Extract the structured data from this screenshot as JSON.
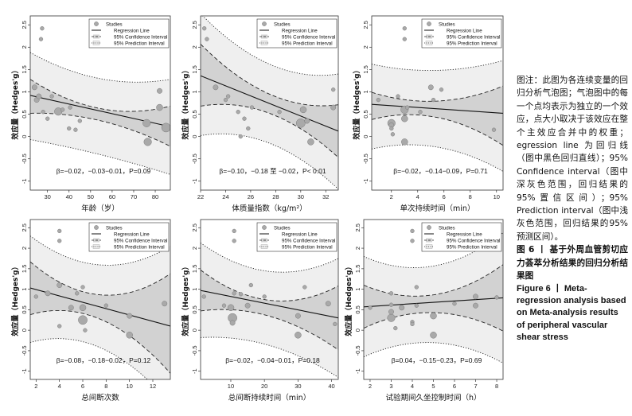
{
  "legend": {
    "studies": "Studies",
    "regression": "Regression Line",
    "ci": "95% Confidence Interval",
    "pi": "95% Prediction Interval"
  },
  "caption": {
    "note": "图注：此图为各连续变量的回归分析气泡图；气泡图中的每一个点均表示为独立的一个效应，点大小取决于该效应在整个主效应合并中的权重；egression line 为回归线（图中黑色回归直线）；95% Confidence interval（图中深灰色范围，回归结果的95%置信区间）；95% Prediction interval（图中浅灰色范围，回归结果的95% 预测区间）。",
    "title_zh": "图 6 丨 基于外周血管剪切应力荟萃分析结果的回归分析结果图",
    "title_en": "Figure 6 丨 Meta-regression analysis based on Meta-analysis results of peripheral vascular shear stress"
  },
  "chart_data": [
    {
      "type": "scatter",
      "xlabel": "年龄（岁）",
      "ylabel": "效应量（Hedges'g）",
      "xlim": [
        22,
        87
      ],
      "ylim": [
        -1.2,
        2.7
      ],
      "xticks": [
        30,
        40,
        50,
        60,
        70,
        80
      ],
      "yticks": [
        -1,
        -0.5,
        0,
        0.5,
        1,
        1.5,
        2,
        2.5
      ],
      "grid": false,
      "legend": "top-right",
      "stats": "β=−0.02，−0.03−0.01，P=0.09",
      "regression": {
        "x0": 22,
        "y0": 0.92,
        "x1": 87,
        "y1": 0.22
      },
      "ci": {
        "x": [
          22,
          54,
          87
        ],
        "upper": [
          1.28,
          0.63,
          0.68
        ],
        "lower": [
          0.52,
          0.36,
          -0.22
        ]
      },
      "pi": {
        "x": [
          22,
          54,
          87
        ],
        "upper": [
          1.88,
          1.3,
          1.28
        ],
        "lower": [
          -0.07,
          -0.4,
          -0.85
        ]
      },
      "points": [
        {
          "x": 24,
          "y": 1.1,
          "s": 3
        },
        {
          "x": 25,
          "y": 0.82,
          "s": 3
        },
        {
          "x": 26,
          "y": 0.9,
          "s": 3
        },
        {
          "x": 27,
          "y": 2.18,
          "s": 2
        },
        {
          "x": 27.5,
          "y": 2.42,
          "s": 2
        },
        {
          "x": 28,
          "y": 0.55,
          "s": 2
        },
        {
          "x": 30,
          "y": 0.4,
          "s": 2
        },
        {
          "x": 32,
          "y": 0.9,
          "s": 2
        },
        {
          "x": 35,
          "y": 0.56,
          "s": 5
        },
        {
          "x": 37,
          "y": 0.6,
          "s": 2
        },
        {
          "x": 40,
          "y": 0.18,
          "s": 2
        },
        {
          "x": 40.5,
          "y": 0.65,
          "s": 2
        },
        {
          "x": 43,
          "y": 0.15,
          "s": 2
        },
        {
          "x": 45,
          "y": 0.35,
          "s": 2
        },
        {
          "x": 76,
          "y": 0.3,
          "s": 5
        },
        {
          "x": 76.5,
          "y": -0.12,
          "s": 5
        },
        {
          "x": 82,
          "y": 1.02,
          "s": 3
        },
        {
          "x": 82,
          "y": 0.65,
          "s": 4
        },
        {
          "x": 85,
          "y": 0.2,
          "s": 6
        }
      ]
    },
    {
      "type": "scatter",
      "xlabel": "体质量指数（kg/m²）",
      "ylabel": "效应量（Hedges'g）",
      "xlim": [
        22,
        33
      ],
      "ylim": [
        -1.2,
        2.7
      ],
      "xticks": [
        22,
        24,
        26,
        28,
        30,
        32
      ],
      "yticks": [
        -1,
        -0.5,
        0,
        0.5,
        1,
        1.5,
        2,
        2.5
      ],
      "grid": false,
      "legend": "top-right",
      "stats": "β=−0.10，−0.18 至 −0.02，P< 0.01",
      "regression": {
        "x0": 22,
        "y0": 1.36,
        "x1": 33,
        "y1": 0.12
      },
      "ci": {
        "x": [
          22,
          27.5,
          33
        ],
        "upper": [
          2.07,
          0.95,
          0.71
        ],
        "lower": [
          0.68,
          0.52,
          -0.47
        ]
      },
      "pi": {
        "x": [
          22,
          27.5,
          33
        ],
        "upper": [
          2.75,
          1.62,
          1.4
        ],
        "lower": [
          0.02,
          -0.15,
          -1.18
        ]
      },
      "points": [
        {
          "x": 22.3,
          "y": 2.42,
          "s": 2
        },
        {
          "x": 22.5,
          "y": 2.18,
          "s": 2
        },
        {
          "x": 23.2,
          "y": 1.1,
          "s": 3
        },
        {
          "x": 24,
          "y": 0.82,
          "s": 2
        },
        {
          "x": 24.2,
          "y": 0.9,
          "s": 2
        },
        {
          "x": 25,
          "y": 0.55,
          "s": 2
        },
        {
          "x": 25.5,
          "y": 0.4,
          "s": 2
        },
        {
          "x": 25.8,
          "y": 0.18,
          "s": 2
        },
        {
          "x": 26.1,
          "y": 0.65,
          "s": 2
        },
        {
          "x": 25.2,
          "y": 0.0,
          "s": 2
        },
        {
          "x": 28.3,
          "y": 0.55,
          "s": 2
        },
        {
          "x": 30,
          "y": 0.3,
          "s": 6
        },
        {
          "x": 30.2,
          "y": 0.6,
          "s": 4
        },
        {
          "x": 30.5,
          "y": 0.35,
          "s": 3
        },
        {
          "x": 30.8,
          "y": -0.12,
          "s": 4
        },
        {
          "x": 32.6,
          "y": 1.05,
          "s": 2
        },
        {
          "x": 32.6,
          "y": 0.65,
          "s": 3
        }
      ]
    },
    {
      "type": "scatter",
      "xlabel": "单次持续时间（min）",
      "ylabel": "效应量（Hedges'g）",
      "xlim": [
        0.5,
        10.5
      ],
      "ylim": [
        -1.2,
        2.7
      ],
      "xticks": [
        2,
        4,
        6,
        8,
        10
      ],
      "yticks": [
        -1,
        -0.5,
        0,
        0.5,
        1,
        1.5,
        2,
        2.5
      ],
      "grid": false,
      "legend": "top-right",
      "stats": "β=−0.02，−0.14−0.09，P=0.71",
      "regression": {
        "x0": 0.5,
        "y0": 0.72,
        "x1": 10.5,
        "y1": 0.52
      },
      "ci": {
        "x": [
          0.5,
          4.5,
          10.5
        ],
        "upper": [
          0.99,
          0.79,
          1.13
        ],
        "lower": [
          0.38,
          0.47,
          -0.2
        ]
      },
      "pi": {
        "x": [
          0.5,
          4.5,
          10.5
        ],
        "upper": [
          1.62,
          1.48,
          1.7
        ],
        "lower": [
          -0.28,
          -0.2,
          -0.78
        ]
      },
      "points": [
        {
          "x": 1,
          "y": 0.82,
          "s": 2
        },
        {
          "x": 2,
          "y": 0.3,
          "s": 5
        },
        {
          "x": 2,
          "y": 0.25,
          "s": 3
        },
        {
          "x": 2,
          "y": 0.18,
          "s": 2
        },
        {
          "x": 2.1,
          "y": 0.05,
          "s": 2
        },
        {
          "x": 2.5,
          "y": 0.9,
          "s": 2
        },
        {
          "x": 3,
          "y": 2.18,
          "s": 2
        },
        {
          "x": 3,
          "y": 2.42,
          "s": 2
        },
        {
          "x": 3,
          "y": 0.6,
          "s": 5
        },
        {
          "x": 3,
          "y": 0.4,
          "s": 4
        },
        {
          "x": 3,
          "y": -0.12,
          "s": 4
        },
        {
          "x": 3.2,
          "y": 0.65,
          "s": 2
        },
        {
          "x": 4.2,
          "y": 0.55,
          "s": 2
        },
        {
          "x": 5,
          "y": 1.1,
          "s": 3
        },
        {
          "x": 5.2,
          "y": 0.82,
          "s": 2
        },
        {
          "x": 5.8,
          "y": 1.05,
          "s": 2
        },
        {
          "x": 9.8,
          "y": 0.15,
          "s": 2
        }
      ]
    },
    {
      "type": "scatter",
      "xlabel": "总间断次数",
      "ylabel": "效应量（Hedges'g）",
      "xlim": [
        1.5,
        13.5
      ],
      "ylim": [
        -1.2,
        2.7
      ],
      "xticks": [
        2,
        4,
        6,
        8,
        10,
        12
      ],
      "yticks": [
        -1,
        -0.5,
        0,
        0.5,
        1,
        1.5,
        2,
        2.5
      ],
      "grid": false,
      "legend": "top-right",
      "stats": "β=−0.08，−0.18−0.02，P=0.12",
      "regression": {
        "x0": 1.5,
        "y0": 1.03,
        "x1": 13.5,
        "y1": 0.1
      },
      "ci": {
        "x": [
          1.5,
          6,
          13.5
        ],
        "upper": [
          1.67,
          0.94,
          1.38
        ],
        "lower": [
          0.38,
          0.41,
          -1.05
        ]
      },
      "pi": {
        "x": [
          1.5,
          6,
          13.5
        ],
        "upper": [
          2.3,
          1.66,
          2.05
        ],
        "lower": [
          -0.3,
          -0.28,
          -1.78
        ]
      },
      "points": [
        {
          "x": 2,
          "y": 0.82,
          "s": 2
        },
        {
          "x": 3,
          "y": 0.9,
          "s": 3
        },
        {
          "x": 4,
          "y": 2.42,
          "s": 2
        },
        {
          "x": 4,
          "y": 2.18,
          "s": 2
        },
        {
          "x": 4,
          "y": 1.1,
          "s": 3
        },
        {
          "x": 4,
          "y": 0.1,
          "s": 2
        },
        {
          "x": 5,
          "y": 0.55,
          "s": 3
        },
        {
          "x": 5.5,
          "y": 0.9,
          "s": 2
        },
        {
          "x": 6,
          "y": 1.05,
          "s": 2
        },
        {
          "x": 6,
          "y": 0.55,
          "s": 4
        },
        {
          "x": 6,
          "y": 0.25,
          "s": 6
        },
        {
          "x": 6.2,
          "y": 0.0,
          "s": 2
        },
        {
          "x": 8,
          "y": 0.6,
          "s": 2
        },
        {
          "x": 10,
          "y": 0.35,
          "s": 3
        },
        {
          "x": 10,
          "y": -0.12,
          "s": 4
        },
        {
          "x": 13,
          "y": 0.65,
          "s": 3
        }
      ]
    },
    {
      "type": "scatter",
      "xlabel": "总间断持续时间（min）",
      "ylabel": "效应量（Hedges'g）",
      "xlim": [
        1,
        42
      ],
      "ylim": [
        -1.2,
        2.7
      ],
      "xticks": [
        10,
        20,
        30,
        40
      ],
      "yticks": [
        -1,
        -0.5,
        0,
        0.5,
        1,
        1.5,
        2,
        2.5
      ],
      "grid": false,
      "legend": "top-right",
      "stats": "β=−0.02，−0.04−0.01，P=0.18",
      "regression": {
        "x0": 1,
        "y0": 0.97,
        "x1": 42,
        "y1": 0.3
      },
      "ci": {
        "x": [
          1,
          17,
          42
        ],
        "upper": [
          1.47,
          0.8,
          1.08
        ],
        "lower": [
          0.47,
          0.43,
          -0.48
        ]
      },
      "pi": {
        "x": [
          1,
          17,
          42
        ],
        "upper": [
          2.13,
          1.5,
          1.75
        ],
        "lower": [
          -0.18,
          -0.28,
          -1.15
        ]
      },
      "points": [
        {
          "x": 2,
          "y": 0.82,
          "s": 2
        },
        {
          "x": 8,
          "y": 0.6,
          "s": 2
        },
        {
          "x": 10,
          "y": 0.55,
          "s": 4
        },
        {
          "x": 10.5,
          "y": 0.3,
          "s": 6
        },
        {
          "x": 10.5,
          "y": 0.18,
          "s": 3
        },
        {
          "x": 11,
          "y": 2.42,
          "s": 2
        },
        {
          "x": 11,
          "y": 2.18,
          "s": 2
        },
        {
          "x": 11,
          "y": 0.9,
          "s": 2
        },
        {
          "x": 13,
          "y": 0.88,
          "s": 2
        },
        {
          "x": 15,
          "y": 0.6,
          "s": 3
        },
        {
          "x": 16,
          "y": 1.1,
          "s": 2
        },
        {
          "x": 20,
          "y": 0.82,
          "s": 2
        },
        {
          "x": 30,
          "y": 0.35,
          "s": 3
        },
        {
          "x": 30,
          "y": -0.12,
          "s": 4
        },
        {
          "x": 32,
          "y": 1.05,
          "s": 2
        },
        {
          "x": 39,
          "y": 0.65,
          "s": 3
        },
        {
          "x": 41,
          "y": 0.15,
          "s": 2
        }
      ]
    },
    {
      "type": "scatter",
      "xlabel": "试验期间久坐控制时间（h）",
      "ylabel": "效应量（Hedges'g）",
      "xlim": [
        1.7,
        8.3
      ],
      "ylim": [
        -1.2,
        2.7
      ],
      "xticks": [
        2,
        3,
        4,
        5,
        6,
        7,
        8
      ],
      "yticks": [
        -1,
        -0.5,
        0,
        0.5,
        1,
        1.5,
        2,
        2.5
      ],
      "grid": false,
      "legend": "top-right",
      "stats": "β=0.04，−0.15−0.23，P=0.69",
      "regression": {
        "x0": 1.7,
        "y0": 0.57,
        "x1": 8.3,
        "y1": 0.79
      },
      "ci": {
        "x": [
          1.7,
          4.8,
          8.3
        ],
        "upper": [
          1.1,
          0.85,
          1.6
        ],
        "lower": [
          0.05,
          0.43,
          -0.02
        ]
      },
      "pi": {
        "x": [
          1.7,
          4.8,
          8.3
        ],
        "upper": [
          1.8,
          1.55,
          2.38
        ],
        "lower": [
          -0.65,
          -0.3,
          -0.8
        ]
      },
      "points": [
        {
          "x": 2,
          "y": 0.55,
          "s": 2
        },
        {
          "x": 3,
          "y": 0.9,
          "s": 2
        },
        {
          "x": 3,
          "y": 0.62,
          "s": 2
        },
        {
          "x": 3,
          "y": 0.3,
          "s": 5
        },
        {
          "x": 3,
          "y": 0.45,
          "s": 3
        },
        {
          "x": 3.2,
          "y": 0.05,
          "s": 2
        },
        {
          "x": 3.5,
          "y": 0.55,
          "s": 3
        },
        {
          "x": 4,
          "y": 2.42,
          "s": 2
        },
        {
          "x": 4,
          "y": 2.18,
          "s": 2
        },
        {
          "x": 4,
          "y": 0.2,
          "s": 2
        },
        {
          "x": 4,
          "y": 0.15,
          "s": 2
        },
        {
          "x": 4.2,
          "y": 1.05,
          "s": 2
        },
        {
          "x": 4.2,
          "y": 0.6,
          "s": 2
        },
        {
          "x": 5,
          "y": 0.35,
          "s": 4
        },
        {
          "x": 5,
          "y": -0.12,
          "s": 4
        },
        {
          "x": 6,
          "y": 0.65,
          "s": 2
        },
        {
          "x": 7,
          "y": 0.82,
          "s": 3
        },
        {
          "x": 7,
          "y": 0.6,
          "s": 3
        },
        {
          "x": 8,
          "y": 0.8,
          "s": 2
        }
      ]
    }
  ]
}
